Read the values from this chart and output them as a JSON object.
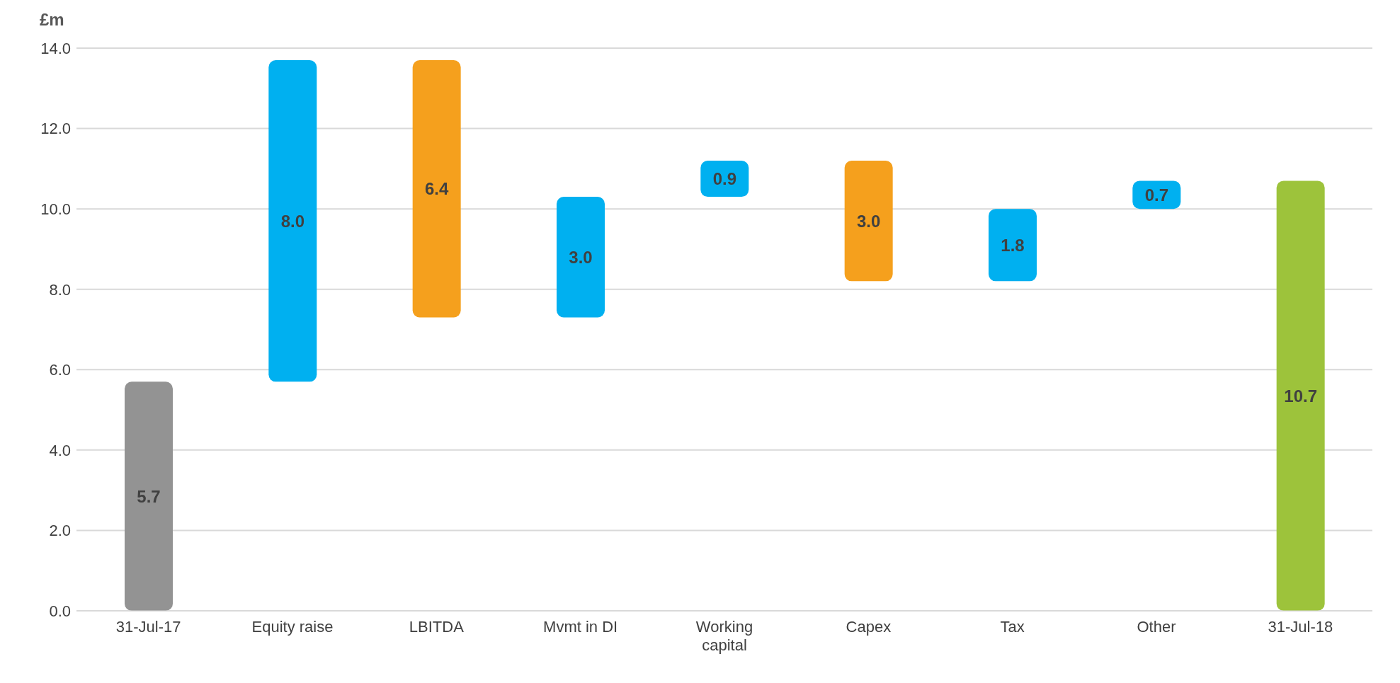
{
  "chart_data": {
    "type": "bar",
    "ylabel": "£m",
    "categories": [
      "31-Jul-17",
      "Equity raise",
      "LBITDA",
      "Mvmt in DI",
      "Working capital",
      "Capex",
      "Tax",
      "Other",
      "31-Jul-18"
    ],
    "base": [
      0,
      5.7,
      7.3,
      7.3,
      10.3,
      8.2,
      8.2,
      10.0,
      0
    ],
    "values": [
      5.7,
      8.0,
      6.4,
      3.0,
      0.9,
      3.0,
      1.8,
      0.7,
      10.7
    ],
    "colors": [
      "#939393",
      "#00b0f0",
      "#f5a01d",
      "#00b0f0",
      "#00b0f0",
      "#f5a01d",
      "#00b0f0",
      "#00b0f0",
      "#9dc33b"
    ],
    "value_labels": [
      "5.7",
      "8.0",
      "6.4",
      "3.0",
      "0.9",
      "3.0",
      "1.8",
      "0.7",
      "10.7"
    ],
    "ylim": [
      0,
      14
    ],
    "yticks": [
      {
        "value": 0,
        "label": "0.0"
      },
      {
        "value": 2,
        "label": "2.0"
      },
      {
        "value": 4,
        "label": "4.0"
      },
      {
        "value": 6,
        "label": "6.0"
      },
      {
        "value": 8,
        "label": "8.0"
      },
      {
        "value": 10,
        "label": "10.0"
      },
      {
        "value": 12,
        "label": "12.0"
      },
      {
        "value": 14,
        "label": "14.0"
      }
    ],
    "grid": "y",
    "legend": false
  }
}
